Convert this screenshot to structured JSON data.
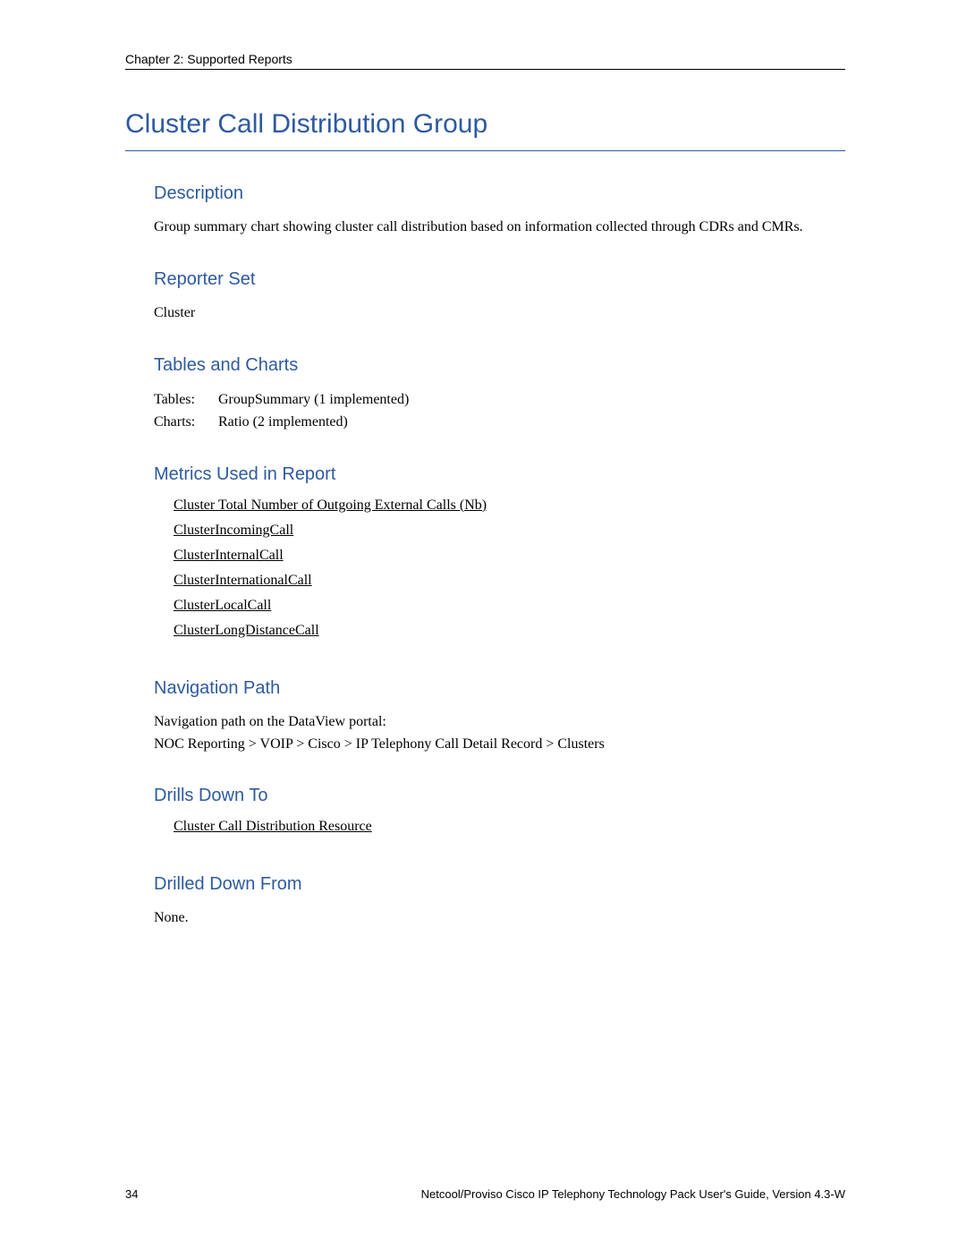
{
  "header": {
    "chapter": "Chapter 2: Supported Reports"
  },
  "title": "Cluster Call Distribution Group",
  "description": {
    "heading": "Description",
    "text": "Group summary chart showing cluster call distribution based on information collected through CDRs and CMRs."
  },
  "reporter_set": {
    "heading": "Reporter Set",
    "text": "Cluster"
  },
  "tables_charts": {
    "heading": "Tables and Charts",
    "rows": [
      {
        "label": "Tables:",
        "value": "GroupSummary (1 implemented)"
      },
      {
        "label": "Charts:",
        "value": "Ratio (2 implemented)"
      }
    ]
  },
  "metrics": {
    "heading": "Metrics Used in Report",
    "items": [
      "Cluster Total Number of Outgoing External Calls (Nb)",
      "ClusterIncomingCall",
      "ClusterInternalCall",
      "ClusterInternationalCall",
      "ClusterLocalCall",
      "ClusterLongDistanceCall"
    ]
  },
  "nav_path": {
    "heading": "Navigation Path",
    "line1": "Navigation path on the DataView portal:",
    "line2": "NOC Reporting > VOIP > Cisco > IP Telephony Call Detail Record > Clusters"
  },
  "drills_to": {
    "heading": "Drills Down To",
    "items": [
      "Cluster Call Distribution Resource"
    ]
  },
  "drilled_from": {
    "heading": "Drilled Down From",
    "text": "None."
  },
  "footer": {
    "page": "34",
    "doc": "Netcool/Proviso Cisco IP Telephony Technology Pack User's Guide, Version 4.3-W"
  },
  "colors": {
    "heading": "#2d5aa0",
    "text": "#000000",
    "bg": "#ffffff"
  }
}
